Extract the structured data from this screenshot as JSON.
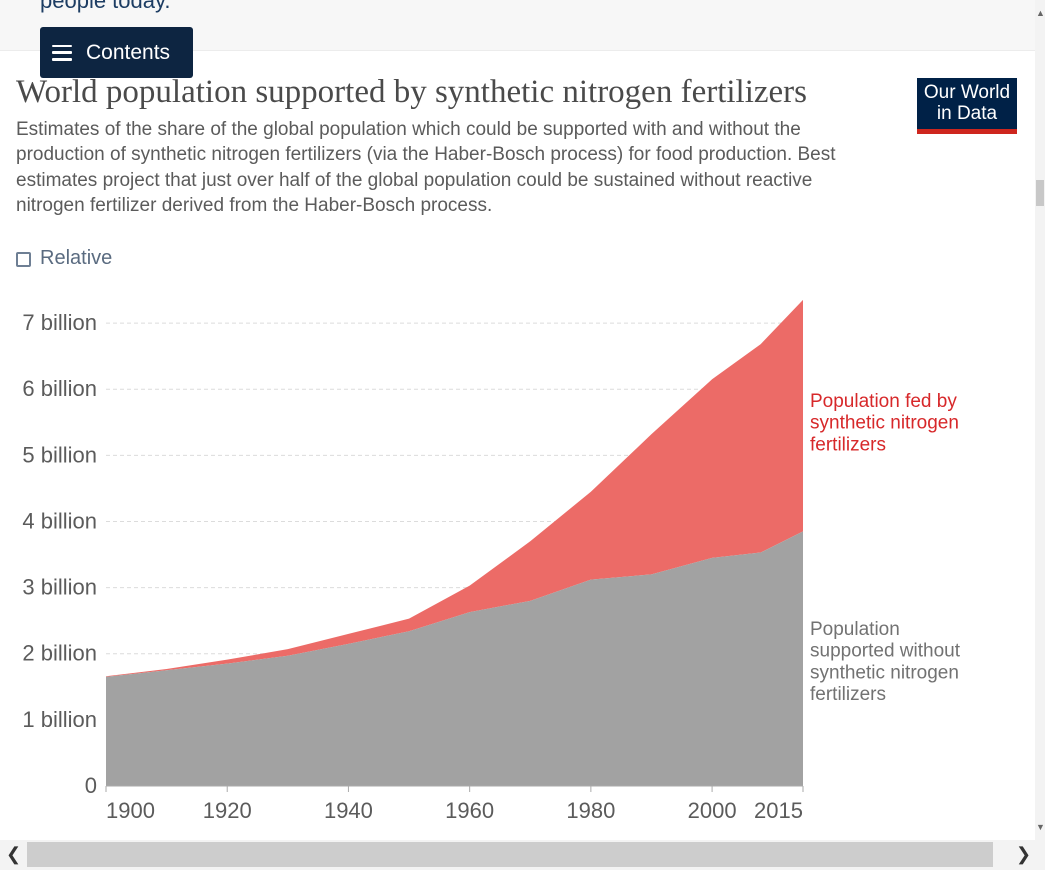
{
  "page": {
    "top_text": "people today.",
    "contents_label": "Contents",
    "title": "World population supported by synthetic nitrogen fertilizers",
    "subtitle": "Estimates of the share of the global population which could be supported with and without the production of synthetic nitrogen fertilizers (via the Haber-Bosch process) for food production. Best estimates project that just over half of the global population could be sustained without reactive nitrogen fertilizer derived from the Haber-Bosch process.",
    "logo_line1": "Our World",
    "logo_line2": "in Data",
    "relative_label": "Relative",
    "relative_checked": false
  },
  "colors": {
    "with_fertilizer": "#ec6b67",
    "without_fertilizer": "#a2a2a2",
    "label_red": "#d7282a",
    "label_gray": "#727272",
    "brand": "#002147",
    "brand_accent": "#ce261e"
  },
  "chart_data": {
    "type": "area",
    "stacked": true,
    "x": [
      1900,
      1910,
      1920,
      1930,
      1940,
      1950,
      1960,
      1970,
      1980,
      1990,
      2000,
      2008,
      2015
    ],
    "x_ticks": [
      1900,
      1920,
      1940,
      1960,
      1980,
      2000,
      2015
    ],
    "y_ticks": [
      0,
      1000000000,
      2000000000,
      3000000000,
      4000000000,
      5000000000,
      6000000000,
      7000000000
    ],
    "y_tick_labels": [
      "0",
      "1 billion",
      "2 billion",
      "3 billion",
      "4 billion",
      "5 billion",
      "6 billion",
      "7 billion"
    ],
    "ylim": [
      0,
      7500000000
    ],
    "xlim": [
      1900,
      2015
    ],
    "grid": "horizontal-dashed",
    "series": [
      {
        "name": "Population supported without synthetic nitrogen fertilizers",
        "label_lines": [
          "Population",
          "supported without",
          "synthetic nitrogen",
          "fertilizers"
        ],
        "color_key": "without_fertilizer",
        "values": [
          1650000000,
          1750000000,
          1850000000,
          1970000000,
          2150000000,
          2340000000,
          2630000000,
          2800000000,
          3120000000,
          3200000000,
          3450000000,
          3530000000,
          3850000000
        ]
      },
      {
        "name": "Population fed by synthetic nitrogen fertilizers",
        "label_lines": [
          "Population fed by",
          "synthetic nitrogen",
          "fertilizers"
        ],
        "color_key": "with_fertilizer",
        "values": [
          10000000,
          20000000,
          60000000,
          100000000,
          150000000,
          190000000,
          400000000,
          900000000,
          1330000000,
          2120000000,
          2700000000,
          3150000000,
          3500000000
        ]
      }
    ]
  }
}
